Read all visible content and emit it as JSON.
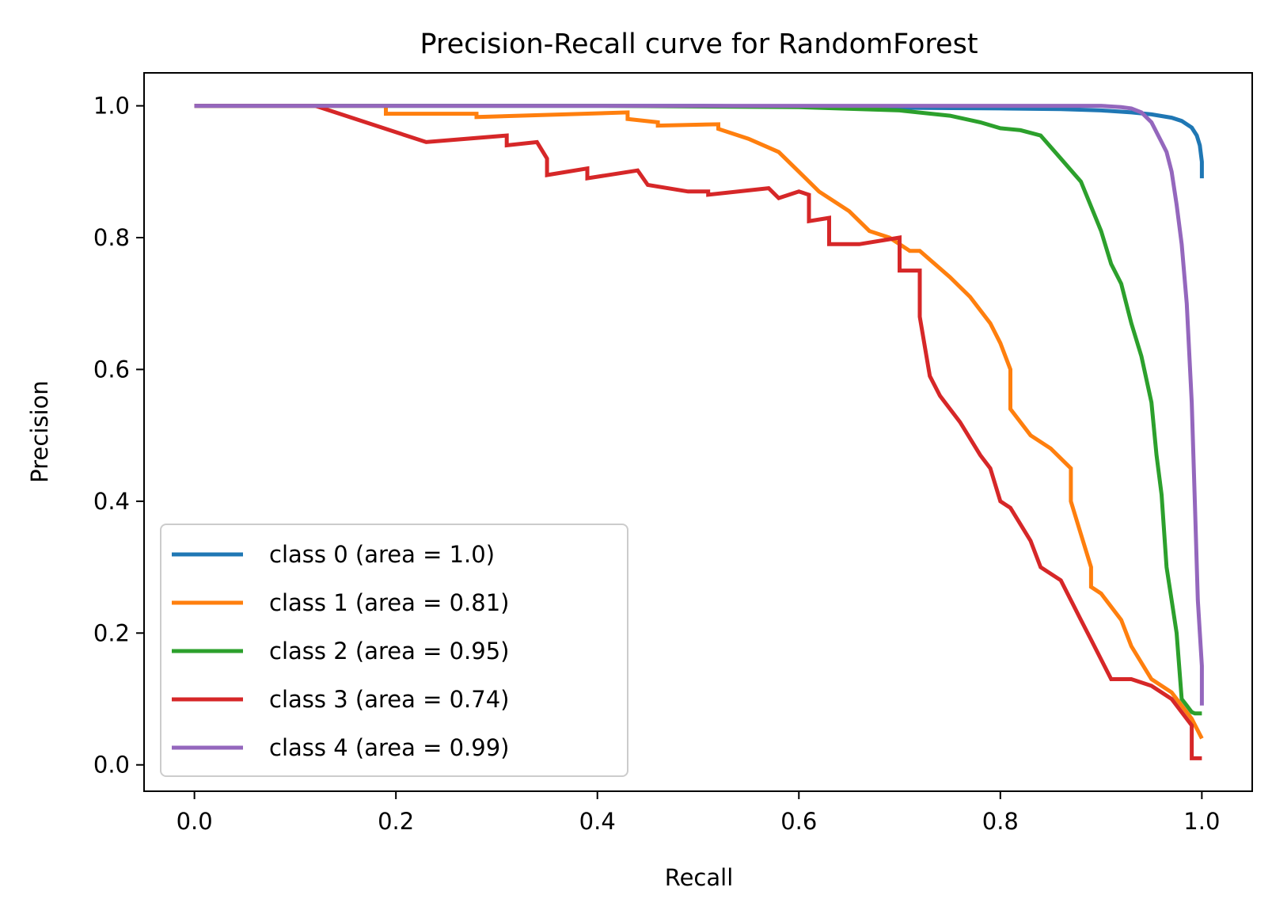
{
  "chart_data": {
    "type": "line",
    "title": "Precision-Recall curve for RandomForest",
    "xlabel": "Recall",
    "ylabel": "Precision",
    "xlim": [
      -0.05,
      1.05
    ],
    "ylim": [
      -0.04,
      1.05
    ],
    "xticks": [
      0.0,
      0.2,
      0.4,
      0.6,
      0.8,
      1.0
    ],
    "xtick_labels": [
      "0.0",
      "0.2",
      "0.4",
      "0.6",
      "0.8",
      "1.0"
    ],
    "yticks": [
      0.0,
      0.2,
      0.4,
      0.6,
      0.8,
      1.0
    ],
    "ytick_labels": [
      "0.0",
      "0.2",
      "0.4",
      "0.6",
      "0.8",
      "1.0"
    ],
    "grid": false,
    "legend_position": "lower-left",
    "series": [
      {
        "name": "class 0 (area = 1.0)",
        "color": "#1f77b4",
        "x": [
          0.0,
          0.5,
          0.7,
          0.8,
          0.86,
          0.9,
          0.93,
          0.95,
          0.97,
          0.98,
          0.99,
          0.995,
          0.998,
          1.0,
          1.0
        ],
        "y": [
          1.0,
          1.0,
          0.997,
          0.996,
          0.995,
          0.993,
          0.99,
          0.987,
          0.982,
          0.977,
          0.967,
          0.955,
          0.94,
          0.915,
          0.89
        ]
      },
      {
        "name": "class 1 (area = 0.81)",
        "color": "#ff7f0e",
        "x": [
          0.0,
          0.19,
          0.19,
          0.28,
          0.28,
          0.43,
          0.43,
          0.46,
          0.46,
          0.52,
          0.52,
          0.55,
          0.58,
          0.6,
          0.62,
          0.65,
          0.67,
          0.69,
          0.71,
          0.72,
          0.75,
          0.77,
          0.79,
          0.8,
          0.81,
          0.81,
          0.83,
          0.85,
          0.87,
          0.87,
          0.88,
          0.89,
          0.89,
          0.9,
          0.92,
          0.93,
          0.95,
          0.97,
          0.99,
          1.0
        ],
        "y": [
          1.0,
          1.0,
          0.988,
          0.988,
          0.983,
          0.99,
          0.98,
          0.975,
          0.97,
          0.972,
          0.965,
          0.95,
          0.93,
          0.9,
          0.87,
          0.84,
          0.81,
          0.8,
          0.78,
          0.78,
          0.74,
          0.71,
          0.67,
          0.64,
          0.6,
          0.54,
          0.5,
          0.48,
          0.45,
          0.4,
          0.35,
          0.3,
          0.27,
          0.26,
          0.22,
          0.18,
          0.13,
          0.11,
          0.07,
          0.04
        ]
      },
      {
        "name": "class 2 (area = 0.95)",
        "color": "#2ca02c",
        "x": [
          0.0,
          0.4,
          0.6,
          0.7,
          0.75,
          0.78,
          0.8,
          0.82,
          0.84,
          0.86,
          0.88,
          0.9,
          0.91,
          0.92,
          0.93,
          0.94,
          0.95,
          0.955,
          0.96,
          0.965,
          0.97,
          0.975,
          0.98,
          0.985,
          0.99,
          0.99,
          0.993,
          1.0
        ],
        "y": [
          1.0,
          1.0,
          0.998,
          0.993,
          0.985,
          0.975,
          0.966,
          0.963,
          0.955,
          0.92,
          0.885,
          0.81,
          0.76,
          0.73,
          0.67,
          0.62,
          0.55,
          0.47,
          0.41,
          0.3,
          0.25,
          0.2,
          0.1,
          0.09,
          0.08,
          0.08,
          0.078,
          0.078
        ]
      },
      {
        "name": "class 3 (area = 0.74)",
        "color": "#d62728",
        "x": [
          0.0,
          0.12,
          0.23,
          0.31,
          0.31,
          0.34,
          0.35,
          0.35,
          0.39,
          0.39,
          0.44,
          0.45,
          0.49,
          0.51,
          0.51,
          0.57,
          0.58,
          0.6,
          0.61,
          0.61,
          0.63,
          0.63,
          0.66,
          0.7,
          0.7,
          0.72,
          0.72,
          0.73,
          0.74,
          0.76,
          0.78,
          0.79,
          0.8,
          0.81,
          0.83,
          0.84,
          0.86,
          0.87,
          0.88,
          0.89,
          0.91,
          0.93,
          0.95,
          0.97,
          0.99,
          0.99,
          1.0
        ],
        "y": [
          1.0,
          1.0,
          0.945,
          0.955,
          0.94,
          0.945,
          0.92,
          0.895,
          0.905,
          0.89,
          0.902,
          0.88,
          0.87,
          0.87,
          0.865,
          0.875,
          0.86,
          0.87,
          0.865,
          0.825,
          0.83,
          0.79,
          0.79,
          0.8,
          0.75,
          0.75,
          0.68,
          0.59,
          0.56,
          0.52,
          0.47,
          0.45,
          0.4,
          0.39,
          0.34,
          0.3,
          0.28,
          0.25,
          0.22,
          0.19,
          0.13,
          0.13,
          0.12,
          0.1,
          0.06,
          0.01,
          0.01
        ]
      },
      {
        "name": "class 4 (area = 0.99)",
        "color": "#9467bd",
        "x": [
          0.0,
          0.5,
          0.8,
          0.9,
          0.92,
          0.93,
          0.94,
          0.95,
          0.955,
          0.96,
          0.965,
          0.97,
          0.975,
          0.98,
          0.985,
          0.99,
          0.993,
          0.996,
          1.0,
          1.0
        ],
        "y": [
          1.0,
          1.0,
          1.0,
          1.0,
          0.998,
          0.996,
          0.99,
          0.975,
          0.96,
          0.945,
          0.93,
          0.9,
          0.85,
          0.79,
          0.7,
          0.55,
          0.4,
          0.25,
          0.15,
          0.09
        ]
      }
    ]
  }
}
